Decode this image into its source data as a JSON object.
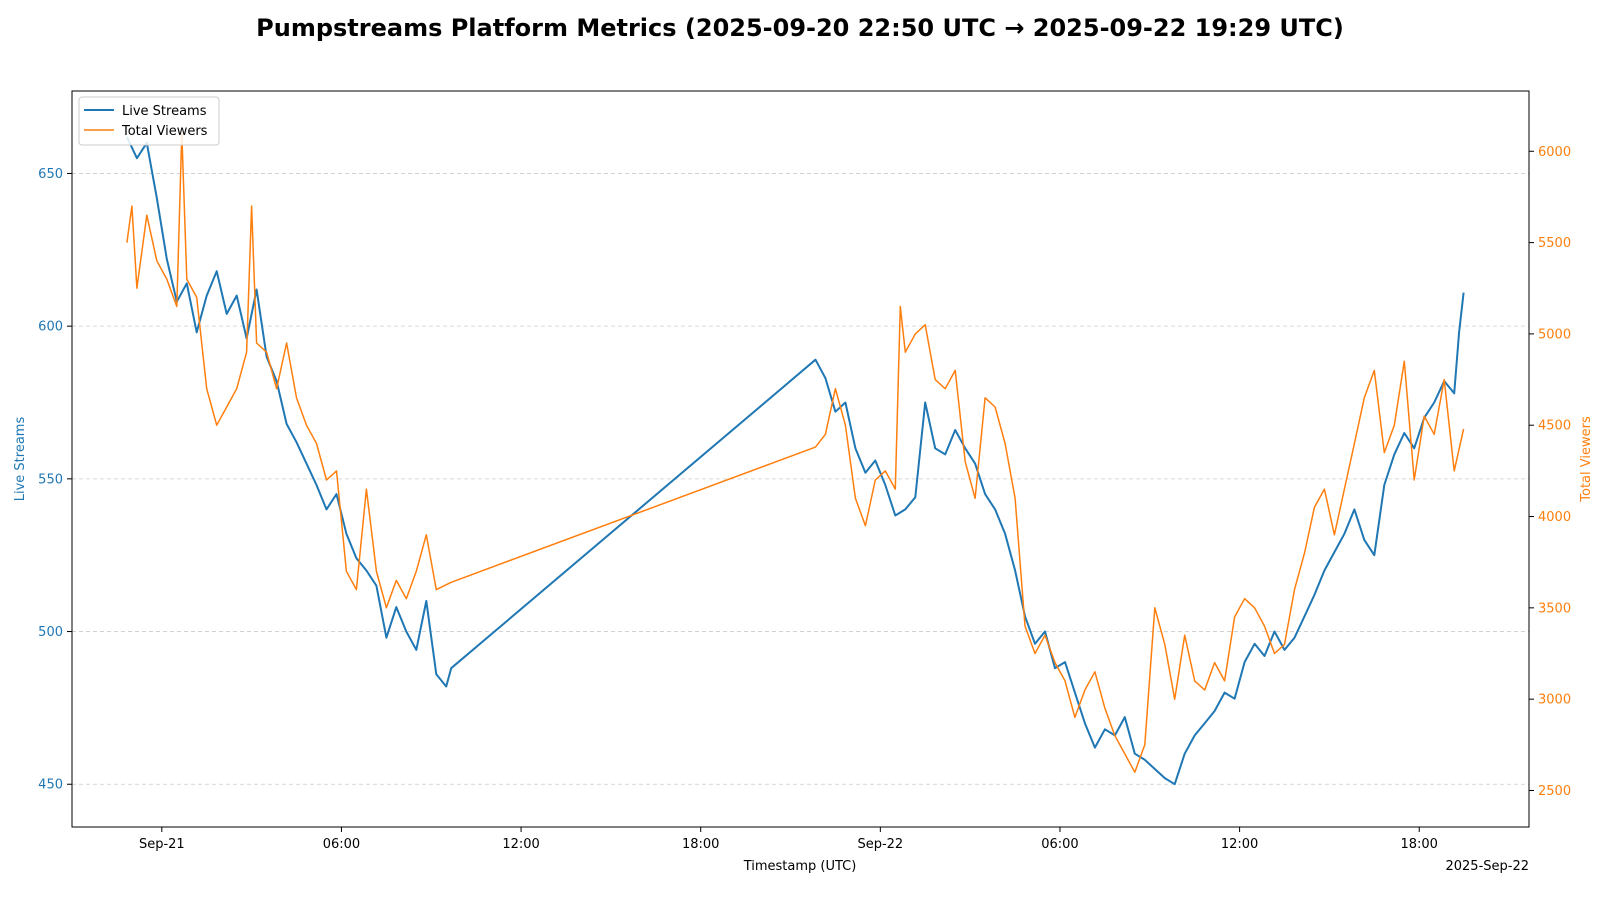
{
  "chart_data": {
    "type": "line",
    "title": "Pumpstreams Platform Metrics (2025-09-20 22:50 UTC → 2025-09-22 19:29 UTC)",
    "xlabel": "Timestamp (UTC)",
    "x_offset_label": "2025-Sep-22",
    "x_range": [
      "2025-09-20T21:00",
      "2025-09-22T21:40"
    ],
    "x_ticks": [
      {
        "t": "2025-09-21T00:00",
        "label": "Sep-21"
      },
      {
        "t": "2025-09-21T06:00",
        "label": "06:00"
      },
      {
        "t": "2025-09-21T12:00",
        "label": "12:00"
      },
      {
        "t": "2025-09-21T18:00",
        "label": "18:00"
      },
      {
        "t": "2025-09-22T00:00",
        "label": "Sep-22"
      },
      {
        "t": "2025-09-22T06:00",
        "label": "06:00"
      },
      {
        "t": "2025-09-22T12:00",
        "label": "12:00"
      },
      {
        "t": "2025-09-22T18:00",
        "label": "18:00"
      }
    ],
    "y_left": {
      "label": "Live Streams",
      "range": [
        436,
        677
      ],
      "ticks": [
        450,
        500,
        550,
        600,
        650
      ],
      "color": "#1f77b4"
    },
    "y_right": {
      "label": "Total Viewers",
      "range": [
        2300,
        6330
      ],
      "ticks": [
        2500,
        3000,
        3500,
        4000,
        4500,
        5000,
        5500,
        6000
      ],
      "color": "#ff7f0e"
    },
    "grid": "horizontal-dashed",
    "legend_position": "top-left",
    "series": [
      {
        "name": "Live Streams",
        "axis": "left",
        "color": "#1f77b4",
        "points": [
          [
            "2025-09-20T22:50",
            662
          ],
          [
            "2025-09-20T23:10",
            655
          ],
          [
            "2025-09-20T23:30",
            660
          ],
          [
            "2025-09-20T23:50",
            642
          ],
          [
            "2025-09-21T00:10",
            622
          ],
          [
            "2025-09-21T00:30",
            608
          ],
          [
            "2025-09-21T00:50",
            614
          ],
          [
            "2025-09-21T01:10",
            598
          ],
          [
            "2025-09-21T01:30",
            610
          ],
          [
            "2025-09-21T01:50",
            618
          ],
          [
            "2025-09-21T02:10",
            604
          ],
          [
            "2025-09-21T02:30",
            610
          ],
          [
            "2025-09-21T02:50",
            596
          ],
          [
            "2025-09-21T03:10",
            612
          ],
          [
            "2025-09-21T03:30",
            590
          ],
          [
            "2025-09-21T03:50",
            582
          ],
          [
            "2025-09-21T04:10",
            568
          ],
          [
            "2025-09-21T04:30",
            562
          ],
          [
            "2025-09-21T04:50",
            555
          ],
          [
            "2025-09-21T05:10",
            548
          ],
          [
            "2025-09-21T05:30",
            540
          ],
          [
            "2025-09-21T05:50",
            545
          ],
          [
            "2025-09-21T06:10",
            532
          ],
          [
            "2025-09-21T06:30",
            524
          ],
          [
            "2025-09-21T06:50",
            520
          ],
          [
            "2025-09-21T07:10",
            515
          ],
          [
            "2025-09-21T07:30",
            498
          ],
          [
            "2025-09-21T07:50",
            508
          ],
          [
            "2025-09-21T08:10",
            500
          ],
          [
            "2025-09-21T08:30",
            494
          ],
          [
            "2025-09-21T08:50",
            510
          ],
          [
            "2025-09-21T09:10",
            486
          ],
          [
            "2025-09-21T09:30",
            482
          ],
          [
            "2025-09-21T09:40",
            488
          ],
          [
            "2025-09-21T21:50",
            589
          ],
          [
            "2025-09-21T22:10",
            583
          ],
          [
            "2025-09-21T22:30",
            572
          ],
          [
            "2025-09-21T22:50",
            575
          ],
          [
            "2025-09-21T23:10",
            560
          ],
          [
            "2025-09-21T23:30",
            552
          ],
          [
            "2025-09-21T23:50",
            556
          ],
          [
            "2025-09-22T00:10",
            548
          ],
          [
            "2025-09-22T00:30",
            538
          ],
          [
            "2025-09-22T00:50",
            540
          ],
          [
            "2025-09-22T01:10",
            544
          ],
          [
            "2025-09-22T01:30",
            575
          ],
          [
            "2025-09-22T01:50",
            560
          ],
          [
            "2025-09-22T02:10",
            558
          ],
          [
            "2025-09-22T02:30",
            566
          ],
          [
            "2025-09-22T02:50",
            560
          ],
          [
            "2025-09-22T03:10",
            555
          ],
          [
            "2025-09-22T03:30",
            545
          ],
          [
            "2025-09-22T03:50",
            540
          ],
          [
            "2025-09-22T04:10",
            532
          ],
          [
            "2025-09-22T04:30",
            520
          ],
          [
            "2025-09-22T04:50",
            505
          ],
          [
            "2025-09-22T05:10",
            496
          ],
          [
            "2025-09-22T05:30",
            500
          ],
          [
            "2025-09-22T05:50",
            488
          ],
          [
            "2025-09-22T06:10",
            490
          ],
          [
            "2025-09-22T06:30",
            480
          ],
          [
            "2025-09-22T06:50",
            470
          ],
          [
            "2025-09-22T07:10",
            462
          ],
          [
            "2025-09-22T07:30",
            468
          ],
          [
            "2025-09-22T07:50",
            466
          ],
          [
            "2025-09-22T08:10",
            472
          ],
          [
            "2025-09-22T08:30",
            460
          ],
          [
            "2025-09-22T08:50",
            458
          ],
          [
            "2025-09-22T09:10",
            455
          ],
          [
            "2025-09-22T09:30",
            452
          ],
          [
            "2025-09-22T09:50",
            450
          ],
          [
            "2025-09-22T10:10",
            460
          ],
          [
            "2025-09-22T10:30",
            466
          ],
          [
            "2025-09-22T10:50",
            470
          ],
          [
            "2025-09-22T11:10",
            474
          ],
          [
            "2025-09-22T11:30",
            480
          ],
          [
            "2025-09-22T11:50",
            478
          ],
          [
            "2025-09-22T12:10",
            490
          ],
          [
            "2025-09-22T12:30",
            496
          ],
          [
            "2025-09-22T12:50",
            492
          ],
          [
            "2025-09-22T13:10",
            500
          ],
          [
            "2025-09-22T13:30",
            494
          ],
          [
            "2025-09-22T13:50",
            498
          ],
          [
            "2025-09-22T14:10",
            505
          ],
          [
            "2025-09-22T14:30",
            512
          ],
          [
            "2025-09-22T14:50",
            520
          ],
          [
            "2025-09-22T15:10",
            526
          ],
          [
            "2025-09-22T15:30",
            532
          ],
          [
            "2025-09-22T15:50",
            540
          ],
          [
            "2025-09-22T16:10",
            530
          ],
          [
            "2025-09-22T16:30",
            525
          ],
          [
            "2025-09-22T16:50",
            548
          ],
          [
            "2025-09-22T17:10",
            558
          ],
          [
            "2025-09-22T17:30",
            565
          ],
          [
            "2025-09-22T17:50",
            560
          ],
          [
            "2025-09-22T18:10",
            570
          ],
          [
            "2025-09-22T18:30",
            575
          ],
          [
            "2025-09-22T18:50",
            582
          ],
          [
            "2025-09-22T19:10",
            578
          ],
          [
            "2025-09-22T19:20",
            598
          ],
          [
            "2025-09-22T19:29",
            611
          ]
        ]
      },
      {
        "name": "Total Viewers",
        "axis": "right",
        "color": "#ff7f0e",
        "points": [
          [
            "2025-09-20T22:50",
            5500
          ],
          [
            "2025-09-20T23:00",
            5700
          ],
          [
            "2025-09-20T23:10",
            5250
          ],
          [
            "2025-09-20T23:30",
            5650
          ],
          [
            "2025-09-20T23:50",
            5400
          ],
          [
            "2025-09-21T00:10",
            5300
          ],
          [
            "2025-09-21T00:30",
            5150
          ],
          [
            "2025-09-21T00:40",
            6100
          ],
          [
            "2025-09-21T00:50",
            5300
          ],
          [
            "2025-09-21T01:10",
            5200
          ],
          [
            "2025-09-21T01:30",
            4700
          ],
          [
            "2025-09-21T01:50",
            4500
          ],
          [
            "2025-09-21T02:10",
            4600
          ],
          [
            "2025-09-21T02:30",
            4700
          ],
          [
            "2025-09-21T02:50",
            4900
          ],
          [
            "2025-09-21T03:00",
            5700
          ],
          [
            "2025-09-21T03:10",
            4950
          ],
          [
            "2025-09-21T03:30",
            4900
          ],
          [
            "2025-09-21T03:50",
            4700
          ],
          [
            "2025-09-21T04:10",
            4950
          ],
          [
            "2025-09-21T04:30",
            4650
          ],
          [
            "2025-09-21T04:50",
            4500
          ],
          [
            "2025-09-21T05:10",
            4400
          ],
          [
            "2025-09-21T05:30",
            4200
          ],
          [
            "2025-09-21T05:50",
            4250
          ],
          [
            "2025-09-21T06:10",
            3700
          ],
          [
            "2025-09-21T06:30",
            3600
          ],
          [
            "2025-09-21T06:50",
            4150
          ],
          [
            "2025-09-21T07:10",
            3700
          ],
          [
            "2025-09-21T07:30",
            3500
          ],
          [
            "2025-09-21T07:50",
            3650
          ],
          [
            "2025-09-21T08:10",
            3550
          ],
          [
            "2025-09-21T08:30",
            3700
          ],
          [
            "2025-09-21T08:50",
            3900
          ],
          [
            "2025-09-21T09:10",
            3600
          ],
          [
            "2025-09-21T09:40",
            3640
          ],
          [
            "2025-09-21T21:50",
            4380
          ],
          [
            "2025-09-21T22:10",
            4450
          ],
          [
            "2025-09-21T22:30",
            4700
          ],
          [
            "2025-09-21T22:50",
            4500
          ],
          [
            "2025-09-21T23:10",
            4100
          ],
          [
            "2025-09-21T23:30",
            3950
          ],
          [
            "2025-09-21T23:50",
            4200
          ],
          [
            "2025-09-22T00:10",
            4250
          ],
          [
            "2025-09-22T00:30",
            4150
          ],
          [
            "2025-09-22T00:40",
            5150
          ],
          [
            "2025-09-22T00:50",
            4900
          ],
          [
            "2025-09-22T01:10",
            5000
          ],
          [
            "2025-09-22T01:30",
            5050
          ],
          [
            "2025-09-22T01:50",
            4750
          ],
          [
            "2025-09-22T02:10",
            4700
          ],
          [
            "2025-09-22T02:30",
            4800
          ],
          [
            "2025-09-22T02:50",
            4300
          ],
          [
            "2025-09-22T03:10",
            4100
          ],
          [
            "2025-09-22T03:30",
            4650
          ],
          [
            "2025-09-22T03:50",
            4600
          ],
          [
            "2025-09-22T04:10",
            4400
          ],
          [
            "2025-09-22T04:30",
            4100
          ],
          [
            "2025-09-22T04:50",
            3400
          ],
          [
            "2025-09-22T05:10",
            3250
          ],
          [
            "2025-09-22T05:30",
            3350
          ],
          [
            "2025-09-22T05:50",
            3200
          ],
          [
            "2025-09-22T06:10",
            3100
          ],
          [
            "2025-09-22T06:30",
            2900
          ],
          [
            "2025-09-22T06:50",
            3050
          ],
          [
            "2025-09-22T07:10",
            3150
          ],
          [
            "2025-09-22T07:30",
            2950
          ],
          [
            "2025-09-22T07:50",
            2800
          ],
          [
            "2025-09-22T08:10",
            2700
          ],
          [
            "2025-09-22T08:30",
            2600
          ],
          [
            "2025-09-22T08:50",
            2750
          ],
          [
            "2025-09-22T09:10",
            3500
          ],
          [
            "2025-09-22T09:30",
            3300
          ],
          [
            "2025-09-22T09:50",
            3000
          ],
          [
            "2025-09-22T10:10",
            3350
          ],
          [
            "2025-09-22T10:30",
            3100
          ],
          [
            "2025-09-22T10:50",
            3050
          ],
          [
            "2025-09-22T11:10",
            3200
          ],
          [
            "2025-09-22T11:30",
            3100
          ],
          [
            "2025-09-22T11:50",
            3450
          ],
          [
            "2025-09-22T12:10",
            3550
          ],
          [
            "2025-09-22T12:30",
            3500
          ],
          [
            "2025-09-22T12:50",
            3400
          ],
          [
            "2025-09-22T13:10",
            3250
          ],
          [
            "2025-09-22T13:30",
            3300
          ],
          [
            "2025-09-22T13:50",
            3600
          ],
          [
            "2025-09-22T14:10",
            3800
          ],
          [
            "2025-09-22T14:30",
            4050
          ],
          [
            "2025-09-22T14:50",
            4150
          ],
          [
            "2025-09-22T15:10",
            3900
          ],
          [
            "2025-09-22T15:30",
            4150
          ],
          [
            "2025-09-22T15:50",
            4400
          ],
          [
            "2025-09-22T16:10",
            4650
          ],
          [
            "2025-09-22T16:30",
            4800
          ],
          [
            "2025-09-22T16:50",
            4350
          ],
          [
            "2025-09-22T17:10",
            4500
          ],
          [
            "2025-09-22T17:30",
            4850
          ],
          [
            "2025-09-22T17:50",
            4200
          ],
          [
            "2025-09-22T18:10",
            4550
          ],
          [
            "2025-09-22T18:30",
            4450
          ],
          [
            "2025-09-22T18:50",
            4750
          ],
          [
            "2025-09-22T19:10",
            4250
          ],
          [
            "2025-09-22T19:29",
            4480
          ]
        ]
      }
    ]
  }
}
